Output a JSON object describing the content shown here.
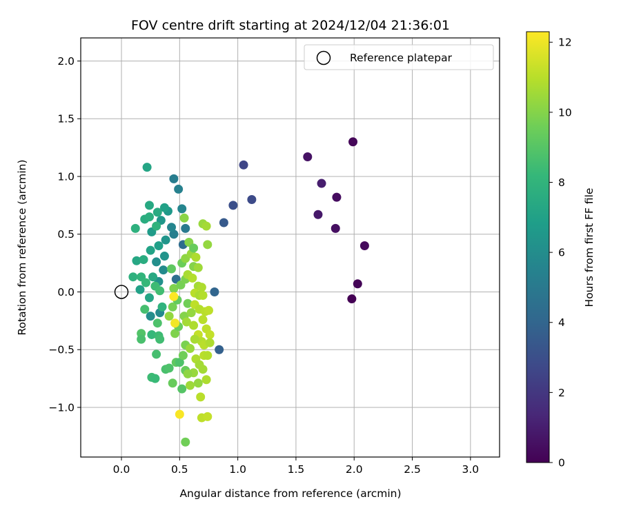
{
  "chart_data": {
    "type": "scatter",
    "title": "FOV centre drift starting at 2024/12/04 21:36:01",
    "xlabel": "Angular distance from reference (arcmin)",
    "ylabel": "Rotation from reference (arcmin)",
    "xlim": [
      -0.35,
      3.25
    ],
    "ylim": [
      -1.43,
      2.2
    ],
    "xticks": [
      0.0,
      0.5,
      1.0,
      1.5,
      2.0,
      2.5,
      3.0
    ],
    "xtick_labels": [
      "0.0",
      "0.5",
      "1.0",
      "1.5",
      "2.0",
      "2.5",
      "3.0"
    ],
    "yticks": [
      -1.0,
      -0.5,
      0.0,
      0.5,
      1.0,
      1.5,
      2.0
    ],
    "ytick_labels": [
      "−1.0",
      "−0.5",
      "0.0",
      "0.5",
      "1.0",
      "1.5",
      "2.0"
    ],
    "grid": true,
    "legend": {
      "position": "top-right",
      "entries": [
        "Reference platepar"
      ]
    },
    "reference_point": {
      "name": "Reference platepar",
      "x": 0.0,
      "y": 0.0
    },
    "colorbar": {
      "label": "Hours from first FF file",
      "min": 0,
      "max": 12.3,
      "colormap": "viridis",
      "ticks": [
        0,
        2,
        4,
        6,
        8,
        10,
        12
      ],
      "tick_labels": [
        "0",
        "2",
        "4",
        "6",
        "8",
        "10",
        "12"
      ]
    },
    "colormap_stops": [
      "#440154",
      "#482878",
      "#3e4989",
      "#31688e",
      "#26828e",
      "#1f9e89",
      "#35b779",
      "#6ece58",
      "#b5de2b",
      "#fde725"
    ],
    "points": [
      [
        1.99,
        1.3,
        0.2
      ],
      [
        1.6,
        1.17,
        0.6
      ],
      [
        1.72,
        0.94,
        1.0
      ],
      [
        1.85,
        0.82,
        0.4
      ],
      [
        1.69,
        0.67,
        0.8
      ],
      [
        1.84,
        0.55,
        0.5
      ],
      [
        2.09,
        0.4,
        0.3
      ],
      [
        2.03,
        0.07,
        0.1
      ],
      [
        1.98,
        -0.06,
        0.0
      ],
      [
        1.05,
        1.1,
        2.6
      ],
      [
        1.12,
        0.8,
        2.8
      ],
      [
        0.96,
        0.75,
        3.0
      ],
      [
        0.88,
        0.6,
        3.5
      ],
      [
        0.84,
        -0.5,
        3.8
      ],
      [
        0.8,
        0.0,
        4.0
      ],
      [
        0.53,
        0.41,
        4.3
      ],
      [
        0.47,
        0.11,
        4.5
      ],
      [
        0.45,
        0.98,
        5.2
      ],
      [
        0.49,
        0.89,
        5.4
      ],
      [
        0.52,
        0.72,
        5.6
      ],
      [
        0.55,
        0.55,
        5.0
      ],
      [
        0.45,
        0.5,
        5.3
      ],
      [
        0.43,
        0.56,
        5.6
      ],
      [
        0.33,
        -0.18,
        5.8
      ],
      [
        0.25,
        -0.21,
        6.0
      ],
      [
        0.36,
        0.19,
        5.9
      ],
      [
        0.3,
        0.26,
        6.1
      ],
      [
        0.32,
        0.09,
        6.2
      ],
      [
        0.37,
        0.31,
        6.3
      ],
      [
        0.38,
        0.45,
        6.4
      ],
      [
        0.34,
        0.62,
        6.5
      ],
      [
        0.4,
        0.7,
        6.6
      ],
      [
        0.26,
        0.52,
        6.7
      ],
      [
        0.37,
        0.73,
        7.0
      ],
      [
        0.22,
        1.08,
        7.2
      ],
      [
        0.24,
        0.75,
        7.4
      ],
      [
        0.31,
        0.69,
        7.5
      ],
      [
        0.2,
        0.63,
        7.6
      ],
      [
        0.24,
        0.65,
        7.7
      ],
      [
        0.12,
        0.55,
        7.8
      ],
      [
        0.3,
        0.57,
        7.9
      ],
      [
        0.25,
        0.36,
        7.1
      ],
      [
        0.32,
        0.4,
        6.9
      ],
      [
        0.13,
        0.27,
        7.3
      ],
      [
        0.19,
        0.28,
        7.6
      ],
      [
        0.1,
        0.13,
        7.8
      ],
      [
        0.17,
        0.13,
        8.0
      ],
      [
        0.21,
        0.08,
        8.2
      ],
      [
        0.27,
        0.13,
        7.4
      ],
      [
        0.29,
        0.05,
        8.4
      ],
      [
        0.33,
        0.01,
        8.5
      ],
      [
        0.16,
        0.02,
        7.0
      ],
      [
        0.24,
        -0.05,
        7.2
      ],
      [
        0.35,
        -0.13,
        7.9
      ],
      [
        0.2,
        -0.15,
        8.6
      ],
      [
        0.31,
        -0.27,
        8.8
      ],
      [
        0.17,
        -0.36,
        8.9
      ],
      [
        0.17,
        -0.41,
        8.7
      ],
      [
        0.26,
        -0.37,
        8.2
      ],
      [
        0.32,
        -0.38,
        8.4
      ],
      [
        0.33,
        -0.41,
        8.5
      ],
      [
        0.3,
        -0.54,
        8.6
      ],
      [
        0.38,
        -0.67,
        8.7
      ],
      [
        0.41,
        -0.66,
        8.8
      ],
      [
        0.26,
        -0.74,
        8.4
      ],
      [
        0.29,
        -0.75,
        8.3
      ],
      [
        0.44,
        -0.79,
        9.4
      ],
      [
        0.47,
        -0.61,
        9.2
      ],
      [
        0.5,
        -0.61,
        8.8
      ],
      [
        0.52,
        -0.84,
        9.0
      ],
      [
        0.55,
        -0.68,
        9.4
      ],
      [
        0.53,
        -0.55,
        9.6
      ],
      [
        0.55,
        -0.46,
        9.8
      ],
      [
        0.46,
        -0.36,
        9.9
      ],
      [
        0.49,
        -0.3,
        9.5
      ],
      [
        0.54,
        -0.21,
        10.0
      ],
      [
        0.41,
        -0.21,
        10.3
      ],
      [
        0.44,
        -0.13,
        9.7
      ],
      [
        0.48,
        -0.07,
        9.3
      ],
      [
        0.57,
        -0.1,
        9.6
      ],
      [
        0.45,
        0.03,
        9.9
      ],
      [
        0.51,
        0.06,
        9.7
      ],
      [
        0.55,
        0.11,
        9.8
      ],
      [
        0.43,
        0.2,
        9.2
      ],
      [
        0.52,
        0.25,
        9.5
      ],
      [
        0.55,
        0.29,
        10.2
      ],
      [
        0.6,
        0.33,
        10.4
      ],
      [
        0.58,
        0.43,
        10.0
      ],
      [
        0.62,
        0.38,
        9.4
      ],
      [
        0.54,
        0.64,
        10.1
      ],
      [
        0.7,
        0.59,
        10.4
      ],
      [
        0.73,
        0.57,
        10.6
      ],
      [
        0.74,
        0.41,
        10.3
      ],
      [
        0.64,
        0.3,
        10.8
      ],
      [
        0.62,
        0.22,
        10.0
      ],
      [
        0.66,
        0.21,
        10.5
      ],
      [
        0.57,
        0.15,
        10.7
      ],
      [
        0.61,
        0.12,
        10.9
      ],
      [
        0.66,
        0.05,
        10.6
      ],
      [
        0.69,
        0.04,
        10.8
      ],
      [
        0.63,
        -0.01,
        11.0
      ],
      [
        0.67,
        -0.03,
        10.7
      ],
      [
        0.7,
        -0.03,
        10.9
      ],
      [
        0.63,
        -0.11,
        11.1
      ],
      [
        0.67,
        -0.15,
        10.9
      ],
      [
        0.72,
        -0.17,
        11.0
      ],
      [
        0.75,
        -0.16,
        11.1
      ],
      [
        0.6,
        -0.18,
        10.3
      ],
      [
        0.56,
        -0.26,
        10.6
      ],
      [
        0.62,
        -0.29,
        10.8
      ],
      [
        0.7,
        -0.24,
        11.0
      ],
      [
        0.73,
        -0.32,
        11.1
      ],
      [
        0.66,
        -0.37,
        11.2
      ],
      [
        0.69,
        -0.43,
        10.9
      ],
      [
        0.63,
        -0.41,
        10.7
      ],
      [
        0.59,
        -0.49,
        10.4
      ],
      [
        0.71,
        -0.46,
        11.0
      ],
      [
        0.76,
        -0.37,
        11.2
      ],
      [
        0.76,
        -0.44,
        10.8
      ],
      [
        0.64,
        -0.58,
        10.8
      ],
      [
        0.67,
        -0.63,
        10.6
      ],
      [
        0.71,
        -0.55,
        11.0
      ],
      [
        0.74,
        -0.55,
        10.9
      ],
      [
        0.62,
        -0.7,
        10.4
      ],
      [
        0.57,
        -0.71,
        10.2
      ],
      [
        0.66,
        -0.79,
        10.3
      ],
      [
        0.59,
        -0.81,
        10.5
      ],
      [
        0.73,
        -0.76,
        10.8
      ],
      [
        0.7,
        -0.67,
        10.6
      ],
      [
        0.68,
        -0.91,
        11.0
      ],
      [
        0.69,
        -1.09,
        11.1
      ],
      [
        0.74,
        -1.08,
        11.2
      ],
      [
        0.55,
        -1.3,
        9.6
      ],
      [
        0.5,
        -1.06,
        12.2
      ],
      [
        0.46,
        -0.27,
        12.1
      ],
      [
        0.45,
        -0.04,
        12.3
      ]
    ]
  }
}
